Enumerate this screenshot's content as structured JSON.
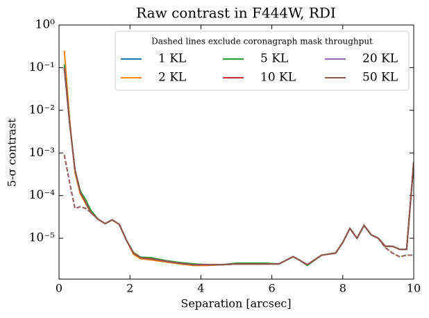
{
  "chart_data": {
    "type": "line",
    "title": "Raw contrast in F444W, RDI",
    "x_label": "Separation [arcsec]",
    "y_label": "5-σ contrast",
    "legend_title": "Dashed lines exclude coronagraph mask throughput",
    "legend_loc": "upper right",
    "log_y": true,
    "xlim": [
      0,
      10
    ],
    "xticks": [
      0,
      2,
      4,
      6,
      8,
      10
    ],
    "ylim": [
      1.1e-06,
      1
    ],
    "yticks": [
      {
        "value": 1e-05,
        "label": "10⁻⁵"
      },
      {
        "value": 0.0001,
        "label": "10⁻⁴"
      },
      {
        "value": 0.001,
        "label": "10⁻³"
      },
      {
        "value": 0.01,
        "label": "10⁻²"
      },
      {
        "value": 0.1,
        "label": "10⁻¹"
      },
      {
        "value": 1,
        "label": "10⁰"
      }
    ],
    "x": [
      0.15,
      0.3,
      0.45,
      0.6,
      0.75,
      0.9,
      1.1,
      1.3,
      1.5,
      1.7,
      1.9,
      2.1,
      2.3,
      2.6,
      3.0,
      3.4,
      3.8,
      4.2,
      4.6,
      5.0,
      5.4,
      5.8,
      6.2,
      6.6,
      6.8,
      7.0,
      7.4,
      7.8,
      8.0,
      8.2,
      8.4,
      8.6,
      8.8,
      9.0,
      9.2,
      9.4,
      9.6,
      9.8,
      10.0
    ],
    "series": [
      {
        "name": "1 KL",
        "color": "#1f77b4",
        "values": [
          0.1,
          0.005,
          0.0004,
          0.00012,
          7e-05,
          4e-05,
          2.8e-05,
          2.2e-05,
          2.7e-05,
          2.1e-05,
          9e-06,
          4.5e-06,
          3.5e-06,
          3.3e-06,
          2.9e-06,
          2.6e-06,
          2.4e-06,
          2.4e-06,
          2.4e-06,
          2.5e-06,
          2.5e-06,
          2.5e-06,
          2.5e-06,
          3.7e-06,
          3e-06,
          2.4e-06,
          4e-06,
          4.5e-06,
          8e-06,
          1.7e-05,
          1e-05,
          2e-05,
          1.2e-05,
          1e-05,
          6.5e-06,
          6.5e-06,
          5.5e-06,
          5.5e-06,
          0.0006
        ],
        "dashed_values": [
          0.0009,
          0.0002,
          5e-05,
          5.5e-05,
          5e-05,
          4e-05,
          2.8e-05,
          2.2e-05,
          2.7e-05,
          2.1e-05,
          9e-06,
          4.5e-06,
          3.5e-06,
          3.3e-06,
          2.9e-06,
          2.6e-06,
          2.4e-06,
          2.4e-06,
          2.4e-06,
          2.5e-06,
          2.5e-06,
          2.5e-06,
          2.5e-06,
          3.7e-06,
          3e-06,
          2.4e-06,
          4e-06,
          4.5e-06,
          8e-06,
          1.7e-05,
          1e-05,
          2e-05,
          1.2e-05,
          1e-05,
          6e-06,
          4.5e-06,
          3.7e-06,
          4e-06,
          4e-06
        ]
      },
      {
        "name": "2 KL",
        "color": "#ff7f0e",
        "values": [
          0.25,
          0.006,
          0.00035,
          0.00011,
          6.5e-05,
          4e-05,
          2.8e-05,
          2.2e-05,
          2.7e-05,
          2.1e-05,
          9e-06,
          4.2e-06,
          3.3e-06,
          3.1e-06,
          2.8e-06,
          2.5e-06,
          2.3e-06,
          2.3e-06,
          2.4e-06,
          2.5e-06,
          2.5e-06,
          2.5e-06,
          2.5e-06,
          3.7e-06,
          3e-06,
          2.4e-06,
          4e-06,
          4.5e-06,
          8e-06,
          1.7e-05,
          1e-05,
          2e-05,
          1.2e-05,
          1e-05,
          6.5e-06,
          6.5e-06,
          5.5e-06,
          5.5e-06,
          0.0006
        ],
        "dashed_values": [
          0.0009,
          0.0002,
          5e-05,
          5.5e-05,
          5e-05,
          4e-05,
          2.8e-05,
          2.2e-05,
          2.7e-05,
          2.1e-05,
          9e-06,
          4.2e-06,
          3.3e-06,
          3.1e-06,
          2.8e-06,
          2.5e-06,
          2.3e-06,
          2.3e-06,
          2.4e-06,
          2.5e-06,
          2.5e-06,
          2.5e-06,
          2.5e-06,
          3.7e-06,
          3e-06,
          2.4e-06,
          4e-06,
          4.5e-06,
          8e-06,
          1.7e-05,
          1e-05,
          2e-05,
          1.2e-05,
          1e-05,
          6e-06,
          4.5e-06,
          3.7e-06,
          4e-06,
          4e-06
        ]
      },
      {
        "name": "5 KL",
        "color": "#2ca02c",
        "values": [
          0.12,
          0.005,
          0.0004,
          0.00013,
          8e-05,
          4.5e-05,
          2.8e-05,
          2.2e-05,
          2.7e-05,
          2.1e-05,
          9e-06,
          4.6e-06,
          3.6e-06,
          3.5e-06,
          3e-06,
          2.7e-06,
          2.5e-06,
          2.4e-06,
          2.4e-06,
          2.6e-06,
          2.6e-06,
          2.6e-06,
          2.5e-06,
          3.7e-06,
          3e-06,
          2.3e-06,
          4e-06,
          4.5e-06,
          8e-06,
          1.7e-05,
          1e-05,
          2e-05,
          1.2e-05,
          1e-05,
          6.5e-06,
          6.5e-06,
          5.5e-06,
          5.5e-06,
          0.0006
        ],
        "dashed_values": [
          0.0009,
          0.0002,
          5e-05,
          5.5e-05,
          5e-05,
          4.5e-05,
          2.8e-05,
          2.2e-05,
          2.7e-05,
          2.1e-05,
          9e-06,
          4.6e-06,
          3.6e-06,
          3.5e-06,
          3e-06,
          2.7e-06,
          2.5e-06,
          2.4e-06,
          2.4e-06,
          2.6e-06,
          2.6e-06,
          2.6e-06,
          2.5e-06,
          3.7e-06,
          3e-06,
          2.3e-06,
          4e-06,
          4.5e-06,
          8e-06,
          1.7e-05,
          1e-05,
          2e-05,
          1.2e-05,
          1e-05,
          6e-06,
          4.5e-06,
          3.7e-06,
          4e-06,
          4e-06
        ]
      },
      {
        "name": "10 KL",
        "color": "#d62728",
        "values": [
          0.1,
          0.005,
          0.0004,
          0.00012,
          7e-05,
          4e-05,
          2.8e-05,
          2.2e-05,
          2.7e-05,
          2.1e-05,
          9e-06,
          4.5e-06,
          3.5e-06,
          3.3e-06,
          2.9e-06,
          2.6e-06,
          2.4e-06,
          2.4e-06,
          2.4e-06,
          2.5e-06,
          2.5e-06,
          2.5e-06,
          2.5e-06,
          3.7e-06,
          3e-06,
          2.4e-06,
          4e-06,
          4.5e-06,
          8e-06,
          1.7e-05,
          1e-05,
          2e-05,
          1.2e-05,
          1e-05,
          6.5e-06,
          6.5e-06,
          5.5e-06,
          5.5e-06,
          0.0006
        ],
        "dashed_values": [
          0.0009,
          0.0002,
          5e-05,
          5.5e-05,
          5e-05,
          4e-05,
          2.8e-05,
          2.2e-05,
          2.7e-05,
          2.1e-05,
          9e-06,
          4.5e-06,
          3.5e-06,
          3.3e-06,
          2.9e-06,
          2.6e-06,
          2.4e-06,
          2.4e-06,
          2.4e-06,
          2.5e-06,
          2.5e-06,
          2.5e-06,
          2.5e-06,
          3.7e-06,
          3e-06,
          2.4e-06,
          4e-06,
          4.5e-06,
          8e-06,
          1.7e-05,
          1e-05,
          2e-05,
          1.2e-05,
          1e-05,
          6e-06,
          4.5e-06,
          3.7e-06,
          4e-06,
          4e-06
        ]
      },
      {
        "name": "20 KL",
        "color": "#9467bd",
        "values": [
          0.1,
          0.005,
          0.0004,
          0.00012,
          7e-05,
          4e-05,
          2.8e-05,
          2.2e-05,
          2.7e-05,
          2.1e-05,
          9e-06,
          4.5e-06,
          3.5e-06,
          3.3e-06,
          2.9e-06,
          2.6e-06,
          2.4e-06,
          2.4e-06,
          2.4e-06,
          2.5e-06,
          2.5e-06,
          2.5e-06,
          2.5e-06,
          3.7e-06,
          3e-06,
          2.4e-06,
          4e-06,
          4.5e-06,
          8e-06,
          1.7e-05,
          1e-05,
          2e-05,
          1.2e-05,
          1e-05,
          6.5e-06,
          6.5e-06,
          5.5e-06,
          5.5e-06,
          0.0006
        ],
        "dashed_values": [
          0.0009,
          0.0002,
          5e-05,
          5.5e-05,
          5e-05,
          4e-05,
          2.8e-05,
          2.2e-05,
          2.7e-05,
          2.1e-05,
          9e-06,
          4.5e-06,
          3.5e-06,
          3.3e-06,
          2.9e-06,
          2.6e-06,
          2.4e-06,
          2.4e-06,
          2.4e-06,
          2.5e-06,
          2.5e-06,
          2.5e-06,
          2.5e-06,
          3.7e-06,
          3e-06,
          2.4e-06,
          4e-06,
          4.5e-06,
          8e-06,
          1.7e-05,
          1e-05,
          2e-05,
          1.2e-05,
          1e-05,
          6e-06,
          4.5e-06,
          3.7e-06,
          4e-06,
          4e-06
        ]
      },
      {
        "name": "50 KL",
        "color": "#8c564b",
        "values": [
          0.1,
          0.005,
          0.0004,
          0.00012,
          7e-05,
          4e-05,
          2.8e-05,
          2.2e-05,
          2.7e-05,
          2.1e-05,
          9e-06,
          4.5e-06,
          3.5e-06,
          3.3e-06,
          2.9e-06,
          2.6e-06,
          2.4e-06,
          2.4e-06,
          2.4e-06,
          2.5e-06,
          2.5e-06,
          2.5e-06,
          2.5e-06,
          3.7e-06,
          3e-06,
          2.4e-06,
          4e-06,
          4.5e-06,
          8e-06,
          1.7e-05,
          1e-05,
          2e-05,
          1.2e-05,
          1e-05,
          6.5e-06,
          6.5e-06,
          5.5e-06,
          5.5e-06,
          0.0006
        ],
        "dashed_values": [
          0.0009,
          0.0002,
          5e-05,
          5.5e-05,
          5e-05,
          4e-05,
          2.8e-05,
          2.2e-05,
          2.7e-05,
          2.1e-05,
          9e-06,
          4.5e-06,
          3.5e-06,
          3.3e-06,
          2.9e-06,
          2.6e-06,
          2.4e-06,
          2.4e-06,
          2.4e-06,
          2.5e-06,
          2.5e-06,
          2.5e-06,
          2.5e-06,
          3.7e-06,
          3e-06,
          2.4e-06,
          4e-06,
          4.5e-06,
          8e-06,
          1.7e-05,
          1e-05,
          2e-05,
          1.2e-05,
          1e-05,
          6e-06,
          4.5e-06,
          3.7e-06,
          4e-06,
          4e-06
        ]
      }
    ]
  }
}
